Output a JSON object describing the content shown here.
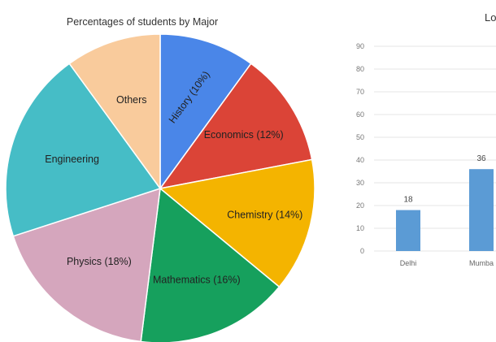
{
  "chart_data": [
    {
      "type": "pie",
      "title": "Percentages of students by Major",
      "slices": [
        {
          "label": "History (10%)",
          "value": 10,
          "color": "#4a86e8"
        },
        {
          "label": "Economics (12%)",
          "value": 12,
          "color": "#db4437"
        },
        {
          "label": "Chemistry (14%)",
          "value": 14,
          "color": "#f4b400"
        },
        {
          "label": "Mathematics (16%)",
          "value": 16,
          "color": "#16a05d"
        },
        {
          "label": "Physics (18%)",
          "value": 18,
          "color": "#d5a6bd"
        },
        {
          "label": "Engineering",
          "value": 20,
          "color": "#46bdc6"
        },
        {
          "label": "Others",
          "value": 10,
          "color": "#f9cb9c"
        }
      ],
      "start_angle_deg": 0,
      "direction": "clockwise",
      "legend": "none"
    },
    {
      "type": "bar",
      "title": "Lo",
      "categories": [
        "Delhi",
        "Mumba"
      ],
      "values": [
        18,
        36
      ],
      "data_labels": [
        "18",
        "36"
      ],
      "ylim": [
        0,
        90
      ],
      "yticks": [
        0,
        10,
        20,
        30,
        40,
        50,
        60,
        70,
        80,
        90
      ],
      "grid": true,
      "bar_color": "#5b9bd5",
      "legend": "none"
    }
  ]
}
